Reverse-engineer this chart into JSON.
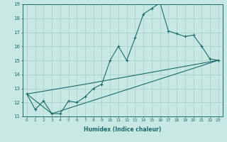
{
  "xlabel": "Humidex (Indice chaleur)",
  "xlim": [
    -0.5,
    23.5
  ],
  "ylim": [
    11,
    19
  ],
  "yticks": [
    11,
    12,
    13,
    14,
    15,
    16,
    17,
    18,
    19
  ],
  "xticks": [
    0,
    1,
    2,
    3,
    4,
    5,
    6,
    7,
    8,
    9,
    10,
    11,
    12,
    13,
    14,
    15,
    16,
    17,
    18,
    19,
    20,
    21,
    22,
    23
  ],
  "xtick_labels": [
    "0",
    "1",
    "2",
    "3",
    "4",
    "5",
    "6",
    "7",
    "8",
    "9",
    "10",
    "11",
    "12",
    "13",
    "14",
    "15",
    "16",
    "17",
    "18",
    "19",
    "20",
    "21",
    "22",
    "23"
  ],
  "bg_color": "#c8e8e4",
  "grid_color": "#b0d4d0",
  "line_color": "#1a6b6b",
  "line1_x": [
    0,
    1,
    2,
    3,
    4,
    5,
    6,
    7,
    8,
    9,
    10,
    11,
    12,
    13,
    14,
    15,
    16,
    17,
    18,
    19,
    20,
    21,
    22,
    23
  ],
  "line1_y": [
    12.6,
    11.5,
    12.1,
    11.2,
    11.2,
    12.1,
    12.0,
    12.4,
    13.0,
    13.3,
    15.0,
    16.0,
    15.0,
    16.6,
    18.3,
    18.7,
    19.1,
    17.1,
    16.9,
    16.7,
    16.8,
    16.0,
    15.1,
    15.0
  ],
  "line2_x": [
    0,
    3,
    23
  ],
  "line2_y": [
    12.6,
    11.2,
    15.0
  ],
  "line3_x": [
    0,
    7,
    23
  ],
  "line3_y": [
    12.6,
    13.3,
    15.0
  ]
}
